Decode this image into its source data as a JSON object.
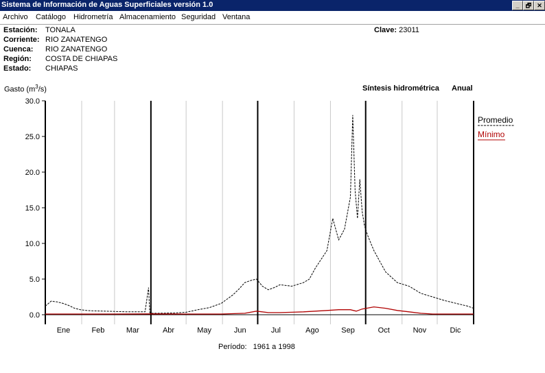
{
  "window": {
    "title": "Sistema de Información de Aguas Superficiales  versión 1.0",
    "buttons": [
      "_",
      "🗗",
      "✕"
    ]
  },
  "menu": [
    "Archivo",
    "Catálogo",
    "Hidrometría",
    "Almacenamiento",
    "Seguridad",
    "Ventana"
  ],
  "station": {
    "estacion_label": "Estación:",
    "estacion": "TONALA",
    "corriente_label": "Corriente:",
    "corriente": "RIO ZANATENGO",
    "cuenca_label": "Cuenca:",
    "cuenca": "RIO ZANATENGO",
    "region_label": "Región:",
    "region": "COSTA DE CHIAPAS",
    "estado_label": "Estado:",
    "estado": "CHIAPAS",
    "clave_label": "Clave:",
    "clave": "23011"
  },
  "chart_header": {
    "synth": "Síntesis hidrométrica",
    "mode": "Anual"
  },
  "period": {
    "label": "Período:",
    "value": "1961 a 1998"
  },
  "chart_data": {
    "type": "line",
    "ylabel_base": "Gasto (m",
    "ylabel_exp": "3",
    "ylabel_end": "/s)",
    "ylim": [
      0,
      30
    ],
    "yticks": [
      "0.0",
      "5.0",
      "10.0",
      "15.0",
      "20.0",
      "25.0",
      "30.0"
    ],
    "months": [
      "Ene",
      "Feb",
      "Mar",
      "Abr",
      "May",
      "Jun",
      "Jul",
      "Ago",
      "Sep",
      "Oct",
      "Nov",
      "Dic"
    ],
    "legend": [
      "Promedio",
      "Mínimo"
    ],
    "colors": {
      "promedio": "#000000",
      "minimo": "#b00000"
    },
    "series": [
      {
        "name": "Promedio",
        "x": [
          0,
          5,
          10,
          15,
          20,
          25,
          30,
          35,
          40,
          50,
          60,
          70,
          80,
          85,
          88,
          89,
          90,
          95,
          110,
          120,
          130,
          140,
          150,
          160,
          165,
          170,
          175,
          180,
          185,
          190,
          195,
          200,
          210,
          220,
          225,
          230,
          240,
          245,
          250,
          255,
          260,
          262,
          264,
          266,
          268,
          270,
          272,
          275,
          280,
          285,
          290,
          300,
          310,
          320,
          330,
          340,
          350,
          360,
          365
        ],
        "values": [
          1.2,
          1.9,
          1.8,
          1.6,
          1.3,
          0.9,
          0.7,
          0.6,
          0.55,
          0.5,
          0.45,
          0.4,
          0.4,
          0.4,
          3.8,
          0.3,
          0.2,
          0.2,
          0.25,
          0.35,
          0.7,
          1.0,
          1.6,
          2.8,
          3.6,
          4.5,
          4.8,
          5.0,
          4.0,
          3.5,
          3.8,
          4.2,
          4.0,
          4.5,
          5.0,
          6.5,
          9.0,
          13.5,
          10.5,
          12.0,
          16.5,
          28.0,
          17.5,
          13.5,
          19.0,
          14.5,
          12.5,
          11.0,
          9.0,
          7.5,
          6.0,
          4.5,
          4.0,
          3.0,
          2.5,
          2.0,
          1.6,
          1.2,
          0.9
        ]
      },
      {
        "name": "Mínimo",
        "x": [
          0,
          60,
          90,
          120,
          150,
          170,
          180,
          190,
          200,
          210,
          220,
          230,
          240,
          250,
          260,
          265,
          270,
          280,
          290,
          300,
          310,
          320,
          330,
          365
        ],
        "values": [
          0.1,
          0.1,
          0.12,
          0.1,
          0.1,
          0.2,
          0.5,
          0.3,
          0.3,
          0.35,
          0.4,
          0.5,
          0.6,
          0.7,
          0.7,
          0.5,
          0.8,
          1.1,
          0.9,
          0.6,
          0.4,
          0.2,
          0.1,
          0.1
        ]
      }
    ]
  }
}
